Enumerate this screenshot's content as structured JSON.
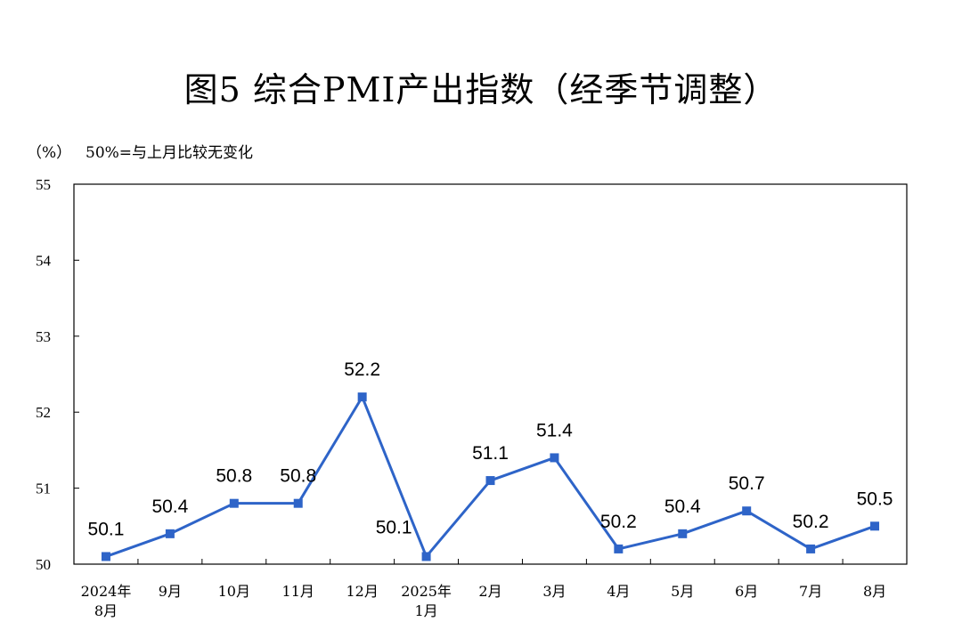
{
  "chart_data": {
    "type": "line",
    "title": "图5  综合PMI产出指数（经季节调整）",
    "unit_label": "（%）",
    "note": "50%=与上月比较无变化",
    "categories": [
      [
        "2024年",
        "8月"
      ],
      [
        "9月"
      ],
      [
        "10月"
      ],
      [
        "11月"
      ],
      [
        "12月"
      ],
      [
        "2025年",
        "1月"
      ],
      [
        "2月"
      ],
      [
        "3月"
      ],
      [
        "4月"
      ],
      [
        "5月"
      ],
      [
        "6月"
      ],
      [
        "7月"
      ],
      [
        "8月"
      ]
    ],
    "series": [
      {
        "values": [
          50.1,
          50.4,
          50.8,
          50.8,
          52.2,
          50.1,
          51.1,
          51.4,
          50.2,
          50.4,
          50.7,
          50.2,
          50.5
        ],
        "color": "#2E64C8"
      }
    ],
    "ylim": [
      50,
      55
    ],
    "yticks": [
      50,
      51,
      52,
      53,
      54,
      55
    ],
    "grid": false,
    "legend": "none"
  }
}
